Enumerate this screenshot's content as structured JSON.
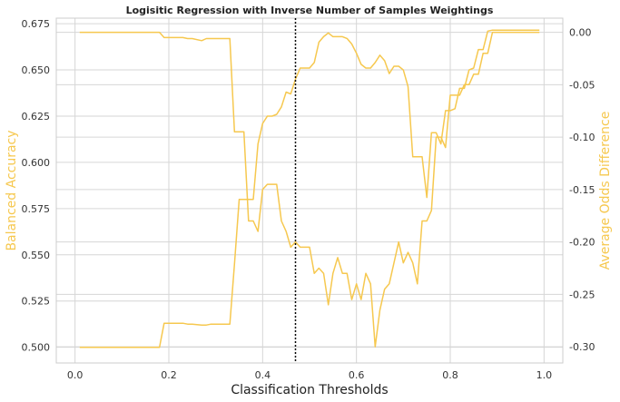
{
  "chart_data": {
    "type": "line",
    "title": "Logisitic Regression with Inverse Number of Samples Weightings",
    "xlabel": "Classification Thresholds",
    "ylabel": "Balanced Accuracy",
    "y2label": "Average Odds Difference",
    "xlim": [
      -0.04,
      1.04
    ],
    "ylim": [
      0.4915,
      0.678
    ],
    "y2lim": [
      -0.3155,
      0.0135
    ],
    "x_ticks": [
      "0.0",
      "0.2",
      "0.4",
      "0.6",
      "0.8",
      "1.0"
    ],
    "y_ticks": [
      "0.500",
      "0.525",
      "0.550",
      "0.575",
      "0.600",
      "0.625",
      "0.650",
      "0.675"
    ],
    "y2_ticks": [
      "0.00",
      "-0.05",
      "-0.10",
      "-0.15",
      "-0.20",
      "-0.25",
      "-0.30"
    ],
    "grid": true,
    "line_color": "#f6c84f",
    "label_color": "#f6c84f",
    "threshold_marker": {
      "x": 0.47,
      "style": "dotted",
      "color": "#000000"
    },
    "series": [
      {
        "axis": "left",
        "x": [
          0.01,
          0.18,
          0.19,
          0.23,
          0.24,
          0.25,
          0.27,
          0.28,
          0.29,
          0.33,
          0.34,
          0.35,
          0.36,
          0.37,
          0.38,
          0.39,
          0.4,
          0.41,
          0.42,
          0.43,
          0.44,
          0.45,
          0.46,
          0.47,
          0.48,
          0.49,
          0.5,
          0.51,
          0.52,
          0.53,
          0.54,
          0.55,
          0.56,
          0.57,
          0.58,
          0.59,
          0.6,
          0.61,
          0.62,
          0.63,
          0.64,
          0.65,
          0.66,
          0.67,
          0.68,
          0.69,
          0.7,
          0.71,
          0.72,
          0.73,
          0.74,
          0.75,
          0.76,
          0.77,
          0.78,
          0.79,
          0.8,
          0.81,
          0.82,
          0.83,
          0.84,
          0.85,
          0.86,
          0.87,
          0.88,
          0.89,
          0.99
        ],
        "y": [
          0.5,
          0.5,
          0.513,
          0.513,
          0.5125,
          0.5125,
          0.512,
          0.512,
          0.5125,
          0.5125,
          0.545,
          0.58,
          0.58,
          0.58,
          0.58,
          0.61,
          0.621,
          0.625,
          0.625,
          0.626,
          0.63,
          0.638,
          0.637,
          0.645,
          0.651,
          0.651,
          0.651,
          0.654,
          0.665,
          0.668,
          0.67,
          0.668,
          0.668,
          0.668,
          0.667,
          0.664,
          0.659,
          0.653,
          0.651,
          0.651,
          0.654,
          0.658,
          0.655,
          0.648,
          0.652,
          0.652,
          0.65,
          0.641,
          0.603,
          0.603,
          0.603,
          0.581,
          0.616,
          0.616,
          0.61,
          0.628,
          0.628,
          0.629,
          0.64,
          0.64,
          0.65,
          0.651,
          0.661,
          0.661,
          0.671,
          0.6715,
          0.6715
        ]
      },
      {
        "axis": "right",
        "x": [
          0.01,
          0.18,
          0.19,
          0.23,
          0.24,
          0.25,
          0.27,
          0.28,
          0.29,
          0.33,
          0.34,
          0.35,
          0.36,
          0.37,
          0.38,
          0.39,
          0.4,
          0.41,
          0.42,
          0.43,
          0.44,
          0.45,
          0.46,
          0.47,
          0.48,
          0.49,
          0.5,
          0.51,
          0.52,
          0.53,
          0.54,
          0.55,
          0.56,
          0.57,
          0.58,
          0.59,
          0.6,
          0.61,
          0.62,
          0.63,
          0.64,
          0.65,
          0.66,
          0.67,
          0.68,
          0.69,
          0.7,
          0.71,
          0.72,
          0.73,
          0.74,
          0.75,
          0.76,
          0.77,
          0.78,
          0.79,
          0.8,
          0.81,
          0.82,
          0.83,
          0.84,
          0.85,
          0.86,
          0.87,
          0.88,
          0.89,
          0.99
        ],
        "y": [
          0.0,
          0.0,
          -0.005,
          -0.005,
          -0.006,
          -0.006,
          -0.008,
          -0.006,
          -0.006,
          -0.006,
          -0.095,
          -0.095,
          -0.095,
          -0.18,
          -0.18,
          -0.19,
          -0.15,
          -0.145,
          -0.145,
          -0.145,
          -0.18,
          -0.19,
          -0.205,
          -0.2,
          -0.205,
          -0.205,
          -0.205,
          -0.23,
          -0.225,
          -0.23,
          -0.26,
          -0.23,
          -0.215,
          -0.23,
          -0.23,
          -0.255,
          -0.24,
          -0.255,
          -0.23,
          -0.24,
          -0.3,
          -0.265,
          -0.245,
          -0.24,
          -0.22,
          -0.2,
          -0.22,
          -0.21,
          -0.22,
          -0.24,
          -0.18,
          -0.18,
          -0.17,
          -0.1,
          -0.1,
          -0.11,
          -0.06,
          -0.06,
          -0.06,
          -0.05,
          -0.05,
          -0.04,
          -0.04,
          -0.02,
          -0.02,
          0.0,
          0.0
        ]
      }
    ]
  }
}
